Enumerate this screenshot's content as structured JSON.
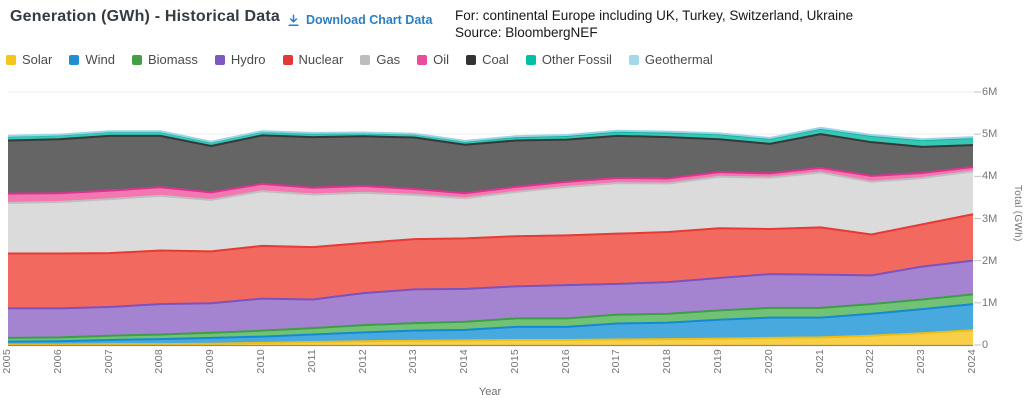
{
  "header": {
    "title": "Generation (GWh) - Historical Data",
    "download_label": "Download Chart Data",
    "scope_line": "For: continental Europe including UK, Turkey, Switzerland, Ukraine",
    "source_line": "Source: BloombergNEF"
  },
  "colors": {
    "link": "#2b7fc0",
    "title_text": "#343b42",
    "axis_text": "#757575",
    "legend_text": "#4b4b4b",
    "gridline": "#ececec",
    "axis_line": "#8a8a8a",
    "tick": "#c2c2c2",
    "background": "#ffffff"
  },
  "chart_data": {
    "type": "area",
    "stacked": true,
    "title": "Generation (GWh) - Historical Data",
    "xlabel": "Year",
    "ylabel": "Total (GWh)",
    "x": [
      2005,
      2006,
      2007,
      2008,
      2009,
      2010,
      2011,
      2012,
      2013,
      2014,
      2015,
      2016,
      2017,
      2018,
      2019,
      2020,
      2021,
      2022,
      2023,
      2024
    ],
    "ylim": [
      0,
      6
    ],
    "value_unit": "million GWh",
    "ytick_labels": [
      "0",
      "1M",
      "2M",
      "3M",
      "4M",
      "5M",
      "6M"
    ],
    "grid": true,
    "legend_position": "top-left",
    "series": [
      {
        "name": "Solar",
        "swatch": "#f5c51d",
        "fill": "#f8cf47",
        "stroke": "#efbe13",
        "values": [
          0.01,
          0.01,
          0.02,
          0.02,
          0.03,
          0.05,
          0.07,
          0.09,
          0.1,
          0.11,
          0.12,
          0.12,
          0.13,
          0.14,
          0.15,
          0.17,
          0.18,
          0.22,
          0.28,
          0.35
        ]
      },
      {
        "name": "Wind",
        "swatch": "#1d8fd1",
        "fill": "#47a9de",
        "stroke": "#148ad2",
        "values": [
          0.07,
          0.08,
          0.1,
          0.12,
          0.14,
          0.15,
          0.18,
          0.21,
          0.24,
          0.25,
          0.31,
          0.31,
          0.38,
          0.39,
          0.45,
          0.48,
          0.47,
          0.52,
          0.57,
          0.62
        ]
      },
      {
        "name": "Biomass",
        "swatch": "#43a047",
        "fill": "#72c276",
        "stroke": "#3d9f45",
        "values": [
          0.09,
          0.09,
          0.1,
          0.11,
          0.12,
          0.14,
          0.15,
          0.17,
          0.18,
          0.19,
          0.2,
          0.2,
          0.21,
          0.21,
          0.22,
          0.23,
          0.23,
          0.23,
          0.23,
          0.23
        ]
      },
      {
        "name": "Hydro",
        "swatch": "#7e57c2",
        "fill": "#a484d1",
        "stroke": "#7c52c0",
        "values": [
          0.7,
          0.69,
          0.68,
          0.72,
          0.7,
          0.76,
          0.68,
          0.76,
          0.8,
          0.78,
          0.76,
          0.79,
          0.73,
          0.75,
          0.77,
          0.8,
          0.79,
          0.68,
          0.78,
          0.8
        ]
      },
      {
        "name": "Nuclear",
        "swatch": "#e53935",
        "fill": "#f2695f",
        "stroke": "#e83a34",
        "values": [
          1.3,
          1.3,
          1.28,
          1.27,
          1.23,
          1.25,
          1.24,
          1.19,
          1.19,
          1.2,
          1.19,
          1.18,
          1.19,
          1.19,
          1.18,
          1.07,
          1.12,
          0.97,
          1.0,
          1.1
        ]
      },
      {
        "name": "Gas",
        "swatch": "#bdbdbd",
        "fill": "#dbdbdb",
        "stroke": "#bfbfbf",
        "values": [
          1.2,
          1.22,
          1.28,
          1.3,
          1.22,
          1.3,
          1.25,
          1.19,
          1.05,
          0.95,
          1.05,
          1.15,
          1.2,
          1.15,
          1.22,
          1.22,
          1.3,
          1.25,
          1.1,
          1.02
        ]
      },
      {
        "name": "Oil",
        "swatch": "#ec4d9b",
        "fill": "#f377b0",
        "stroke": "#dc3390",
        "values": [
          0.22,
          0.21,
          0.2,
          0.2,
          0.18,
          0.17,
          0.16,
          0.16,
          0.14,
          0.12,
          0.12,
          0.12,
          0.12,
          0.12,
          0.11,
          0.1,
          0.11,
          0.14,
          0.12,
          0.1
        ]
      },
      {
        "name": "Coal",
        "swatch": "#333333",
        "fill": "#656565",
        "stroke": "#383838",
        "values": [
          1.26,
          1.28,
          1.3,
          1.22,
          1.1,
          1.15,
          1.2,
          1.18,
          1.22,
          1.15,
          1.1,
          1.0,
          1.0,
          0.98,
          0.78,
          0.7,
          0.8,
          0.8,
          0.62,
          0.52
        ]
      },
      {
        "name": "Other Fossil",
        "swatch": "#00bfa5",
        "fill": "#35c8b4",
        "stroke": "#0bb49b",
        "values": [
          0.1,
          0.1,
          0.1,
          0.1,
          0.09,
          0.09,
          0.09,
          0.08,
          0.08,
          0.08,
          0.08,
          0.09,
          0.1,
          0.11,
          0.12,
          0.12,
          0.13,
          0.15,
          0.16,
          0.17
        ]
      },
      {
        "name": "Geothermal",
        "swatch": "#a5d7ea",
        "fill": "#c4e4f2",
        "stroke": "#9bd3e8",
        "values": [
          0.01,
          0.01,
          0.01,
          0.01,
          0.01,
          0.01,
          0.01,
          0.01,
          0.01,
          0.01,
          0.02,
          0.02,
          0.02,
          0.02,
          0.02,
          0.02,
          0.02,
          0.02,
          0.02,
          0.02
        ]
      }
    ]
  }
}
